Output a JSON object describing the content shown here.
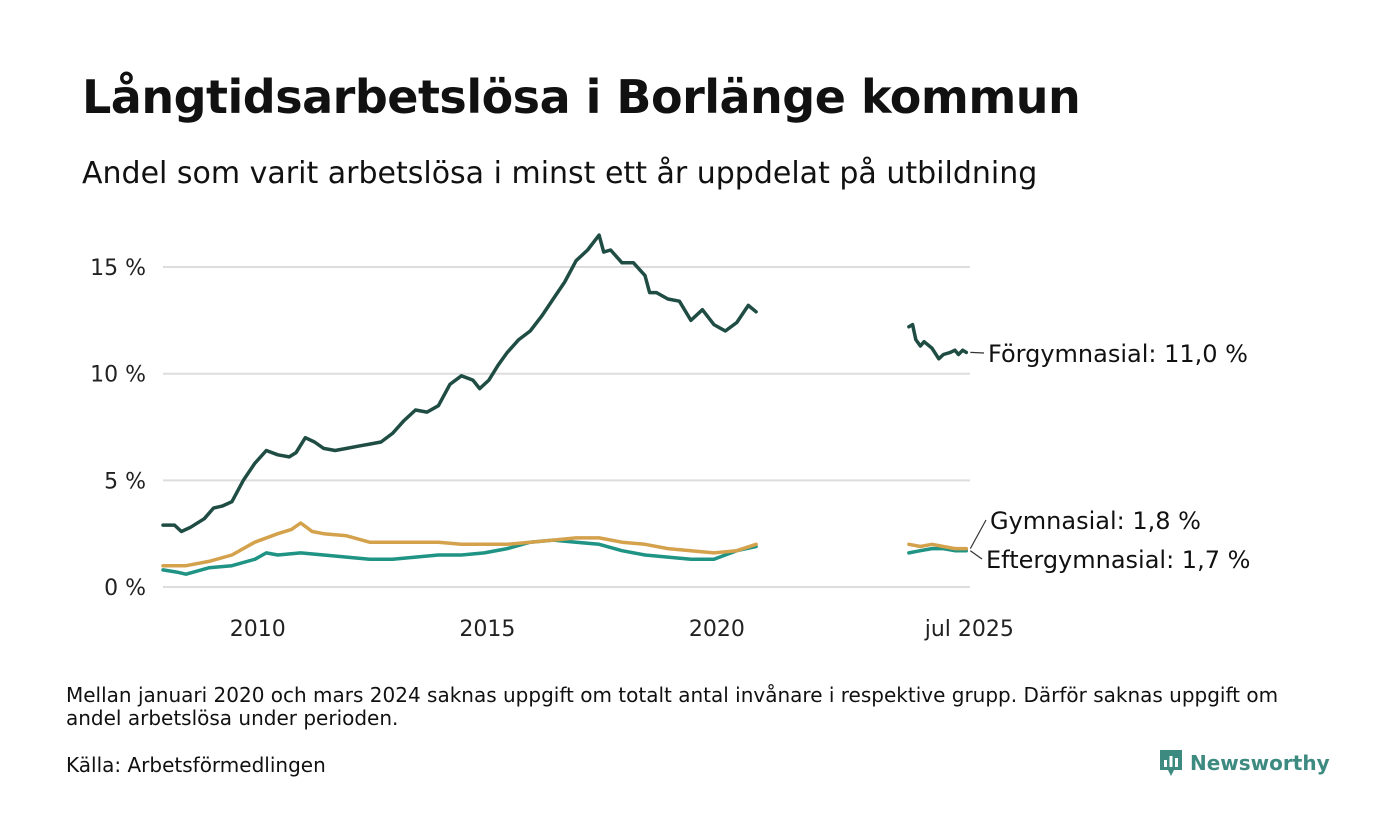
{
  "title": "Långtidsarbetslösa i Borlänge kommun",
  "subtitle": "Andel som varit arbetslösa i minst ett år uppdelat på utbildning",
  "note": "Mellan januari 2020 och mars 2024 saknas uppgift om totalt antal invånare i respektive grupp. Därför saknas uppgift om andel arbetslösa under perioden.",
  "source": "Källa: Arbetsförmedlingen",
  "brand": "Newsworthy",
  "colors": {
    "forgymnasial": "#1f4d44",
    "gymnasial": "#d4a24c",
    "eftergymnasial": "#1f9384",
    "grid": "#dddddd",
    "brand": "#3d8a80"
  },
  "chart_data": {
    "type": "line",
    "title": "Långtidsarbetslösa i Borlänge kommun",
    "subtitle": "Andel som varit arbetslösa i minst ett år uppdelat på utbildning",
    "x_unit": "year (decimal)",
    "xlim": [
      2008.0,
      2025.58
    ],
    "ylim": [
      0,
      17
    ],
    "y_ticks": [
      {
        "value": 0,
        "label": "0 %"
      },
      {
        "value": 5,
        "label": "5 %"
      },
      {
        "value": 10,
        "label": "10 %"
      },
      {
        "value": 15,
        "label": "15 %"
      }
    ],
    "x_ticks": [
      {
        "value": 2010,
        "label": "2010"
      },
      {
        "value": 2015,
        "label": "2015"
      },
      {
        "value": 2020,
        "label": "2020"
      },
      {
        "value": 2025.5,
        "label": "jul 2025"
      }
    ],
    "grid": "horizontal",
    "legend": "direct labels at line ends",
    "series": [
      {
        "name": "Förgymnasial",
        "end_label": "Förgymnasial: 11,0 %",
        "segments": [
          [
            [
              2008.0,
              2.9
            ],
            [
              2008.25,
              2.9
            ],
            [
              2008.4,
              2.6
            ],
            [
              2008.6,
              2.8
            ],
            [
              2008.9,
              3.2
            ],
            [
              2009.1,
              3.7
            ],
            [
              2009.3,
              3.8
            ],
            [
              2009.5,
              4.0
            ],
            [
              2009.75,
              5.0
            ],
            [
              2010.0,
              5.8
            ],
            [
              2010.25,
              6.4
            ],
            [
              2010.5,
              6.2
            ],
            [
              2010.75,
              6.1
            ],
            [
              2010.9,
              6.3
            ],
            [
              2011.1,
              7.0
            ],
            [
              2011.3,
              6.8
            ],
            [
              2011.5,
              6.5
            ],
            [
              2011.75,
              6.4
            ],
            [
              2012.0,
              6.5
            ],
            [
              2012.25,
              6.6
            ],
            [
              2012.5,
              6.7
            ],
            [
              2012.75,
              6.8
            ],
            [
              2013.0,
              7.2
            ],
            [
              2013.25,
              7.8
            ],
            [
              2013.5,
              8.3
            ],
            [
              2013.75,
              8.2
            ],
            [
              2014.0,
              8.5
            ],
            [
              2014.25,
              9.5
            ],
            [
              2014.5,
              9.9
            ],
            [
              2014.75,
              9.7
            ],
            [
              2014.9,
              9.3
            ],
            [
              2015.1,
              9.7
            ],
            [
              2015.3,
              10.4
            ],
            [
              2015.5,
              11.0
            ],
            [
              2015.75,
              11.6
            ],
            [
              2016.0,
              12.0
            ],
            [
              2016.25,
              12.7
            ],
            [
              2016.5,
              13.5
            ],
            [
              2016.75,
              14.3
            ],
            [
              2017.0,
              15.3
            ],
            [
              2017.25,
              15.8
            ],
            [
              2017.5,
              16.5
            ],
            [
              2017.6,
              15.7
            ],
            [
              2017.75,
              15.8
            ],
            [
              2018.0,
              15.2
            ],
            [
              2018.25,
              15.2
            ],
            [
              2018.5,
              14.6
            ],
            [
              2018.6,
              13.8
            ],
            [
              2018.75,
              13.8
            ],
            [
              2019.0,
              13.5
            ],
            [
              2019.25,
              13.4
            ],
            [
              2019.5,
              12.5
            ],
            [
              2019.75,
              13.0
            ],
            [
              2020.0,
              12.3
            ],
            [
              2020.25,
              12.0
            ],
            [
              2020.5,
              12.4
            ],
            [
              2020.75,
              13.2
            ],
            [
              2020.92,
              12.9
            ]
          ],
          [
            [
              2024.25,
              12.2
            ],
            [
              2024.33,
              12.3
            ],
            [
              2024.4,
              11.6
            ],
            [
              2024.5,
              11.3
            ],
            [
              2024.58,
              11.5
            ],
            [
              2024.75,
              11.2
            ],
            [
              2024.9,
              10.7
            ],
            [
              2025.0,
              10.9
            ],
            [
              2025.15,
              11.0
            ],
            [
              2025.25,
              11.1
            ],
            [
              2025.33,
              10.9
            ],
            [
              2025.42,
              11.1
            ],
            [
              2025.5,
              11.0
            ]
          ]
        ]
      },
      {
        "name": "Gymnasial",
        "end_label": "Gymnasial:  1,8 %",
        "segments": [
          [
            [
              2008.0,
              1.0
            ],
            [
              2008.5,
              1.0
            ],
            [
              2009.0,
              1.2
            ],
            [
              2009.5,
              1.5
            ],
            [
              2010.0,
              2.1
            ],
            [
              2010.5,
              2.5
            ],
            [
              2010.8,
              2.7
            ],
            [
              2011.0,
              3.0
            ],
            [
              2011.25,
              2.6
            ],
            [
              2011.5,
              2.5
            ],
            [
              2012.0,
              2.4
            ],
            [
              2012.5,
              2.1
            ],
            [
              2013.0,
              2.1
            ],
            [
              2013.5,
              2.1
            ],
            [
              2014.0,
              2.1
            ],
            [
              2014.5,
              2.0
            ],
            [
              2015.0,
              2.0
            ],
            [
              2015.5,
              2.0
            ],
            [
              2016.0,
              2.1
            ],
            [
              2016.5,
              2.2
            ],
            [
              2017.0,
              2.3
            ],
            [
              2017.5,
              2.3
            ],
            [
              2018.0,
              2.1
            ],
            [
              2018.5,
              2.0
            ],
            [
              2019.0,
              1.8
            ],
            [
              2019.5,
              1.7
            ],
            [
              2020.0,
              1.6
            ],
            [
              2020.5,
              1.7
            ],
            [
              2020.92,
              2.0
            ]
          ],
          [
            [
              2024.25,
              2.0
            ],
            [
              2024.5,
              1.9
            ],
            [
              2024.75,
              2.0
            ],
            [
              2025.0,
              1.9
            ],
            [
              2025.25,
              1.8
            ],
            [
              2025.5,
              1.8
            ]
          ]
        ]
      },
      {
        "name": "Eftergymnasial",
        "end_label": "Eftergymnasial:  1,7 %",
        "segments": [
          [
            [
              2008.0,
              0.8
            ],
            [
              2008.3,
              0.7
            ],
            [
              2008.5,
              0.6
            ],
            [
              2009.0,
              0.9
            ],
            [
              2009.5,
              1.0
            ],
            [
              2010.0,
              1.3
            ],
            [
              2010.25,
              1.6
            ],
            [
              2010.5,
              1.5
            ],
            [
              2011.0,
              1.6
            ],
            [
              2011.5,
              1.5
            ],
            [
              2012.0,
              1.4
            ],
            [
              2012.5,
              1.3
            ],
            [
              2013.0,
              1.3
            ],
            [
              2013.5,
              1.4
            ],
            [
              2014.0,
              1.5
            ],
            [
              2014.5,
              1.5
            ],
            [
              2015.0,
              1.6
            ],
            [
              2015.5,
              1.8
            ],
            [
              2016.0,
              2.1
            ],
            [
              2016.5,
              2.2
            ],
            [
              2017.0,
              2.1
            ],
            [
              2017.5,
              2.0
            ],
            [
              2018.0,
              1.7
            ],
            [
              2018.5,
              1.5
            ],
            [
              2019.0,
              1.4
            ],
            [
              2019.5,
              1.3
            ],
            [
              2020.0,
              1.3
            ],
            [
              2020.25,
              1.5
            ],
            [
              2020.5,
              1.7
            ],
            [
              2020.92,
              1.9
            ]
          ],
          [
            [
              2024.25,
              1.6
            ],
            [
              2024.5,
              1.7
            ],
            [
              2024.75,
              1.8
            ],
            [
              2025.0,
              1.8
            ],
            [
              2025.25,
              1.7
            ],
            [
              2025.5,
              1.7
            ]
          ]
        ]
      }
    ]
  }
}
